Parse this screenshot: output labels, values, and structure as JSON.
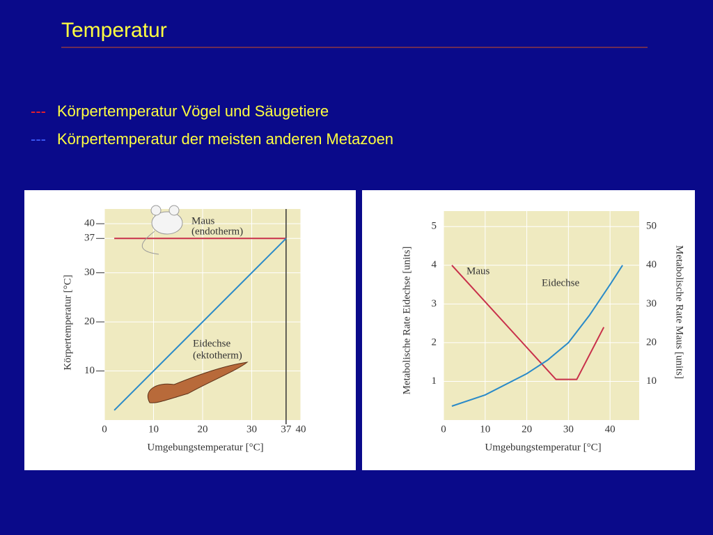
{
  "title": "Temperatur",
  "bullets": [
    {
      "marker": "---",
      "text": "Körpertemperatur Vögel und Säugetiere"
    },
    {
      "marker": "---",
      "text": "Körpertemperatur der meisten anderen Metazoen"
    }
  ],
  "chart_data": [
    {
      "type": "line",
      "xlabel": "Umgebungstemperatur [°C]",
      "ylabel": "Körpertemperatur [°C]",
      "xlim": [
        0,
        40
      ],
      "ylim": [
        0,
        43
      ],
      "xticks": [
        0,
        10,
        20,
        30,
        37,
        40
      ],
      "yticks": [
        10,
        20,
        30,
        37,
        40
      ],
      "grid": true,
      "vline": 37,
      "series": [
        {
          "name": "Maus",
          "color": "#c8304a",
          "x": [
            2,
            37
          ],
          "values": [
            37,
            37
          ]
        },
        {
          "name": "Eidechse",
          "color": "#2a8ac8",
          "x": [
            2,
            37
          ],
          "values": [
            2,
            37
          ]
        }
      ],
      "annotations": [
        "(endotherm)",
        "(ektotherm)"
      ]
    },
    {
      "type": "line",
      "xlabel": "Umgebungstemperatur [°C]",
      "ylabel": "Metabolische Rate Eidechse [units]",
      "y2label": "Metabolische Rate Maus [units]",
      "xlim": [
        0,
        47
      ],
      "ylim": [
        0,
        5.4
      ],
      "y2lim": [
        0,
        54
      ],
      "xticks": [
        0,
        10,
        20,
        30,
        40
      ],
      "yticks": [
        1,
        2,
        3,
        4,
        5
      ],
      "y2ticks": [
        10,
        20,
        30,
        40,
        50
      ],
      "grid": true,
      "series": [
        {
          "name": "Maus",
          "color": "#c8304a",
          "axis": "y2",
          "x": [
            2,
            27,
            32,
            38.5
          ],
          "values": [
            40,
            10.5,
            10.5,
            24
          ]
        },
        {
          "name": "Eidechse",
          "color": "#2a8ac8",
          "x": [
            2,
            10,
            20,
            25,
            30,
            35,
            40,
            43
          ],
          "values": [
            0.36,
            0.65,
            1.2,
            1.55,
            2.0,
            2.7,
            3.5,
            4.0
          ]
        }
      ]
    }
  ]
}
